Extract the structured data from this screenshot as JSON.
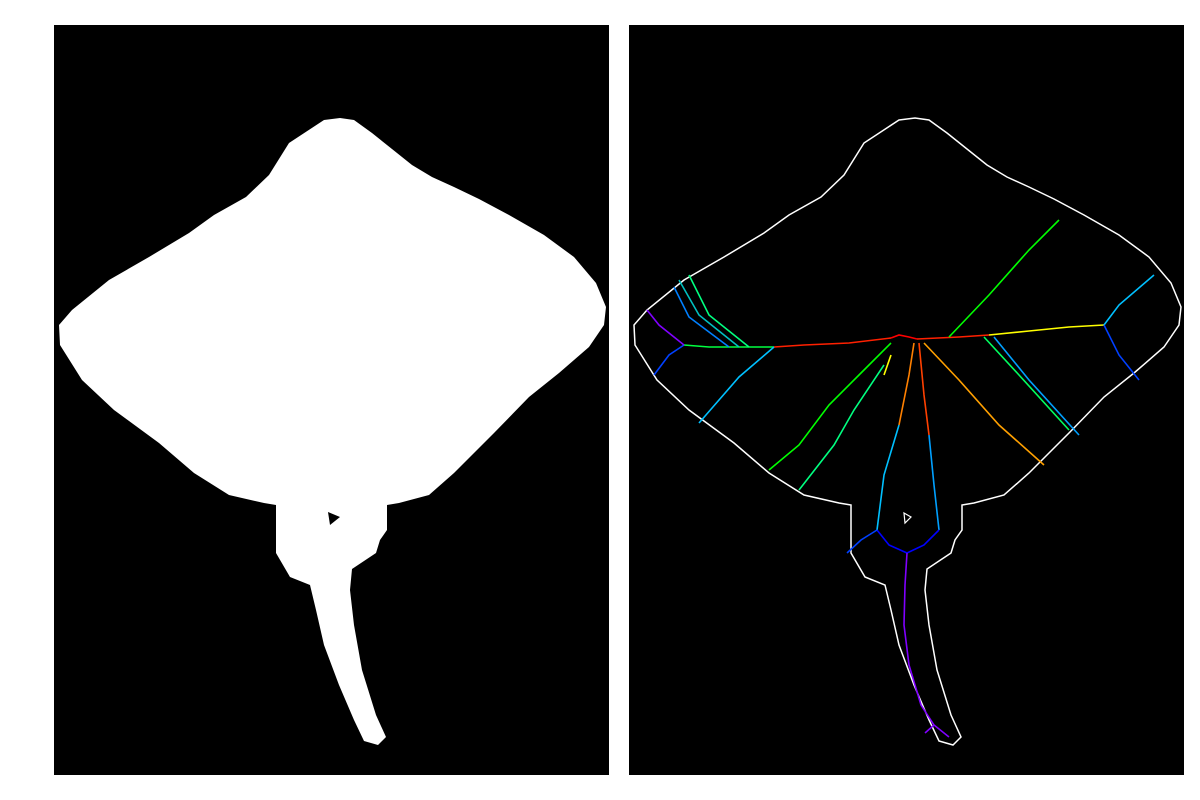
{
  "panels": [
    {
      "id": "left",
      "kind": "binary-mask",
      "background": "#000000",
      "foreground": "#ffffff"
    },
    {
      "id": "right",
      "kind": "contour-with-skeleton",
      "background": "#000000",
      "outline": "#ffffff"
    }
  ],
  "skeleton_color_scale": [
    "#ff0000",
    "#ff7a00",
    "#ffff00",
    "#00ff00",
    "#00c0ff",
    "#0030ff",
    "#8000ff"
  ]
}
